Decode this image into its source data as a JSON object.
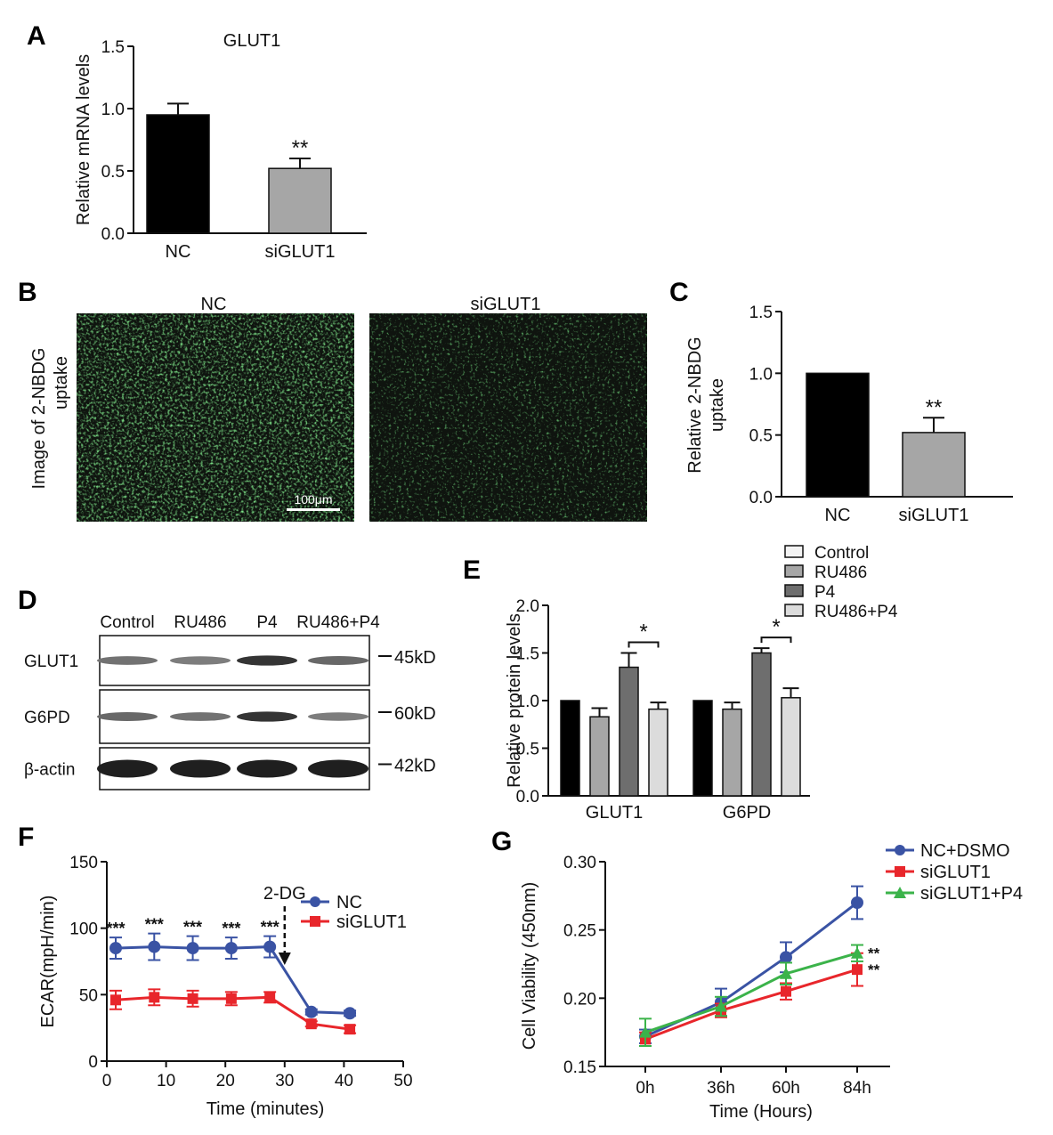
{
  "panels": {
    "A": {
      "label": "A",
      "chart_data": {
        "type": "bar",
        "title": "GLUT1",
        "categories": [
          "NC",
          "siGLUT1"
        ],
        "values": [
          0.95,
          0.52
        ],
        "errors": [
          0.09,
          0.08
        ],
        "colors": [
          "#000000",
          "#a6a6a6"
        ],
        "ylabel": "Relative mRNA levels",
        "ylim": [
          0,
          1.5
        ],
        "yticks": [
          "0.0",
          "0.5",
          "1.0",
          "1.5"
        ],
        "significance": [
          "",
          "**"
        ]
      }
    },
    "B": {
      "label": "B",
      "ylabel_line1": "Image of 2-NBDG",
      "ylabel_line2": "uptake",
      "images": [
        {
          "title": "NC",
          "intensity": "high",
          "scale_bar": "100μm"
        },
        {
          "title": "siGLUT1",
          "intensity": "low",
          "scale_bar": ""
        }
      ]
    },
    "C": {
      "label": "C",
      "chart_data": {
        "type": "bar",
        "title": "",
        "categories": [
          "NC",
          "siGLUT1"
        ],
        "values": [
          1.0,
          0.52
        ],
        "errors": [
          0.0,
          0.12
        ],
        "colors": [
          "#000000",
          "#a6a6a6"
        ],
        "ylabel_line1": "Relative 2-NBDG",
        "ylabel_line2": "uptake",
        "ylim": [
          0,
          1.5
        ],
        "yticks": [
          "0.0",
          "0.5",
          "1.0",
          "1.5"
        ],
        "significance": [
          "",
          "**"
        ]
      }
    },
    "D": {
      "label": "D",
      "lanes": [
        "Control",
        "RU486",
        "P4",
        "RU486+P4"
      ],
      "blots": [
        {
          "protein": "GLUT1",
          "size": "45kD",
          "intensities": [
            0.55,
            0.5,
            0.85,
            0.6
          ]
        },
        {
          "protein": "G6PD",
          "size": "60kD",
          "intensities": [
            0.6,
            0.55,
            0.85,
            0.5
          ]
        },
        {
          "protein": "β-actin",
          "size": "42kD",
          "intensities": [
            0.95,
            0.95,
            0.95,
            0.95
          ]
        }
      ]
    },
    "E": {
      "label": "E",
      "chart_data": {
        "type": "bar",
        "title": "",
        "categories": [
          "GLUT1",
          "G6PD"
        ],
        "series": [
          {
            "name": "Control",
            "values": [
              1.0,
              1.0
            ],
            "errors": [
              0,
              0
            ],
            "color": "#000000"
          },
          {
            "name": "RU486",
            "values": [
              0.83,
              0.91
            ],
            "errors": [
              0.09,
              0.07
            ],
            "color": "#a6a6a6"
          },
          {
            "name": "P4",
            "values": [
              1.35,
              1.5
            ],
            "errors": [
              0.15,
              0.05
            ],
            "color": "#6e6e6e"
          },
          {
            "name": "RU486+P4",
            "values": [
              0.91,
              1.03
            ],
            "errors": [
              0.07,
              0.1
            ],
            "color": "#dcdcdc"
          }
        ],
        "ylabel": "Relative protein levels",
        "ylim": [
          0,
          2.0
        ],
        "yticks": [
          "0.0",
          "0.5",
          "1.0",
          "1.5",
          "2.0"
        ],
        "significance": [
          {
            "category": 0,
            "text": "*"
          },
          {
            "category": 1,
            "text": "*"
          }
        ],
        "legend_position": "top-right"
      }
    },
    "F": {
      "label": "F",
      "chart_data": {
        "type": "line",
        "title": "",
        "xlabel": "Time (minutes)",
        "ylabel": "ECAR(mpH/min)",
        "xlim": [
          0,
          50
        ],
        "ylim": [
          0,
          150
        ],
        "xticks": [
          "0",
          "10",
          "20",
          "30",
          "40",
          "50"
        ],
        "yticks": [
          "0",
          "50",
          "100",
          "150"
        ],
        "x": [
          1.5,
          8,
          14.5,
          21,
          27.5,
          34.5,
          41
        ],
        "series": [
          {
            "name": "NC",
            "color": "#3a53a4",
            "marker": "circle",
            "values": [
              85,
              86,
              85,
              85,
              86,
              37,
              36
            ],
            "errors": [
              8,
              10,
              9,
              8,
              8,
              2,
              2
            ]
          },
          {
            "name": "siGLUT1",
            "color": "#e8262b",
            "marker": "square",
            "values": [
              46,
              48,
              47,
              47,
              48,
              28,
              24
            ],
            "errors": [
              7,
              6,
              6,
              5,
              4,
              2,
              3
            ]
          }
        ],
        "annotation": {
          "text": "2-DG",
          "x": 30
        },
        "significance": [
          "***",
          "***",
          "***",
          "***",
          "***"
        ],
        "legend_position": "top-right"
      }
    },
    "G": {
      "label": "G",
      "chart_data": {
        "type": "line",
        "title": "",
        "xlabel": "Time (Hours)",
        "ylabel": "Cell Viability (450nm)",
        "categories": [
          "0h",
          "36h",
          "60h",
          "84h"
        ],
        "ylim": [
          0.15,
          0.3
        ],
        "yticks": [
          "0.15",
          "0.20",
          "0.25",
          "0.30"
        ],
        "series": [
          {
            "name": "NC+DSMO",
            "color": "#3a53a4",
            "marker": "circle",
            "values": [
              0.172,
              0.197,
              0.23,
              0.27
            ],
            "errors": [
              0.005,
              0.01,
              0.011,
              0.012
            ]
          },
          {
            "name": "siGLUT1",
            "color": "#e8262b",
            "marker": "square",
            "values": [
              0.17,
              0.191,
              0.205,
              0.221
            ],
            "errors": [
              0.005,
              0.005,
              0.006,
              0.012
            ]
          },
          {
            "name": "siGLUT1+P4",
            "color": "#3bb34a",
            "marker": "triangle",
            "values": [
              0.175,
              0.194,
              0.218,
              0.233
            ],
            "errors": [
              0.01,
              0.007,
              0.008,
              0.006
            ]
          }
        ],
        "significance_labels": [
          "**",
          "**"
        ],
        "legend_position": "top-right"
      }
    }
  }
}
